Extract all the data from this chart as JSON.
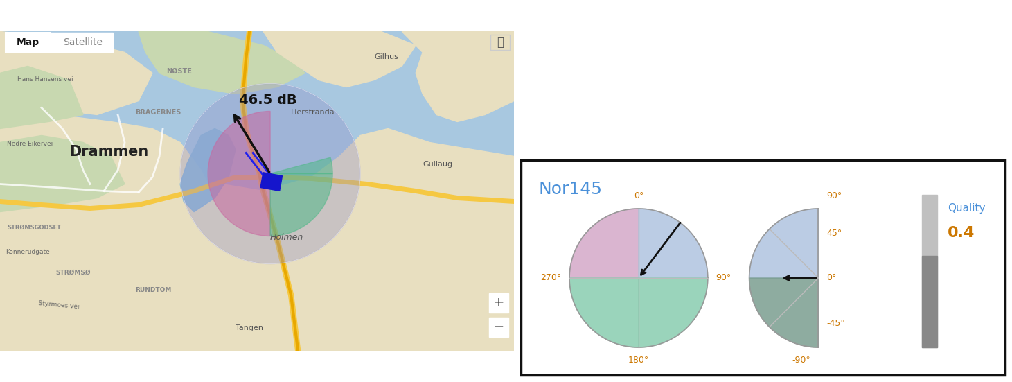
{
  "title": "Nor145",
  "quality_label": "Quality",
  "quality_value": "0.4",
  "quality_color": "#cc7700",
  "title_color": "#4a90d9",
  "map_label": "46.5 dB",
  "map_label_color": "#111111",
  "arrow_color": "#111111",
  "panel_bg": "#ffffff",
  "panel_border": "#111111",
  "az_colors": {
    "top_left": "#d4a8c8",
    "top_right": "#b0c4e0",
    "bottom_left": "#88cdb0",
    "bottom_right": "#88cdb0"
  },
  "el_colors": {
    "top": "#b0c4e0",
    "bottom": "#7a9e90"
  },
  "label_color": "#cc7700",
  "map_water_color": "#a8c8e0",
  "map_land_color": "#e8dfc0",
  "map_green_color": "#c8d8b0",
  "map_road_color": "#f5c842",
  "map_river_color": "#88b8d8",
  "outer_circle_color": "#9090c8",
  "pink_wedge_color": "#c868a0",
  "green_wedge_color": "#50b888"
}
